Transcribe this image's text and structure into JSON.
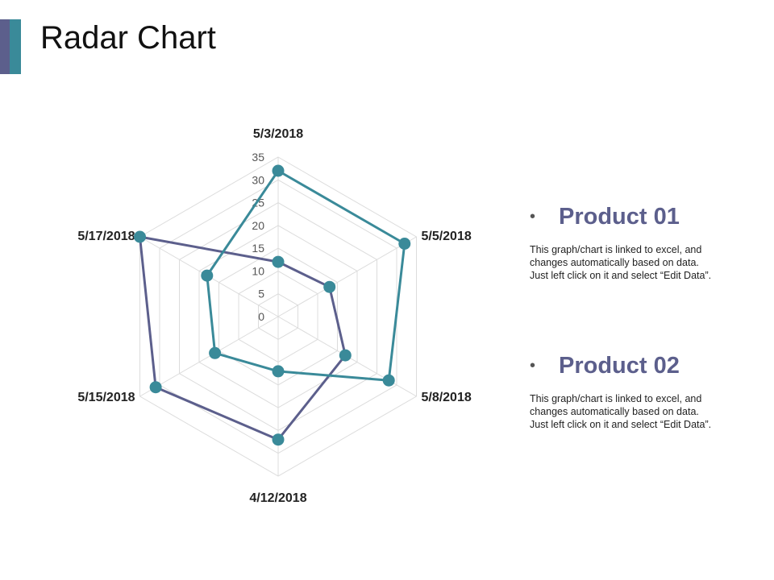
{
  "slide": {
    "title": "Radar Chart"
  },
  "chart_data": {
    "type": "radar",
    "categories": [
      "5/3/2018",
      "5/5/2018",
      "5/8/2018",
      "4/12/2018",
      "5/15/2018",
      "5/17/2018"
    ],
    "r_ticks": [
      "0",
      "5",
      "10",
      "15",
      "20",
      "25",
      "30",
      "35"
    ],
    "rlim": [
      0,
      35
    ],
    "grid": true,
    "series": [
      {
        "values": [
          12,
          13,
          17,
          27,
          31,
          35
        ],
        "color": "#5c5f8c"
      },
      {
        "values": [
          32,
          32,
          28,
          12,
          16,
          18
        ],
        "color": "#3a8a99"
      }
    ]
  },
  "legend": [
    {
      "name": "Product 01",
      "bullet": "•",
      "desc": [
        "This graph/chart is linked to excel, and",
        "changes automatically based on data.",
        "Just left click on it and select “Edit Data”."
      ]
    },
    {
      "name": "Product 02",
      "bullet": "•",
      "desc": [
        "This graph/chart is linked to excel, and",
        "changes automatically based on data.",
        "Just left click on it and select “Edit Data”."
      ]
    }
  ]
}
